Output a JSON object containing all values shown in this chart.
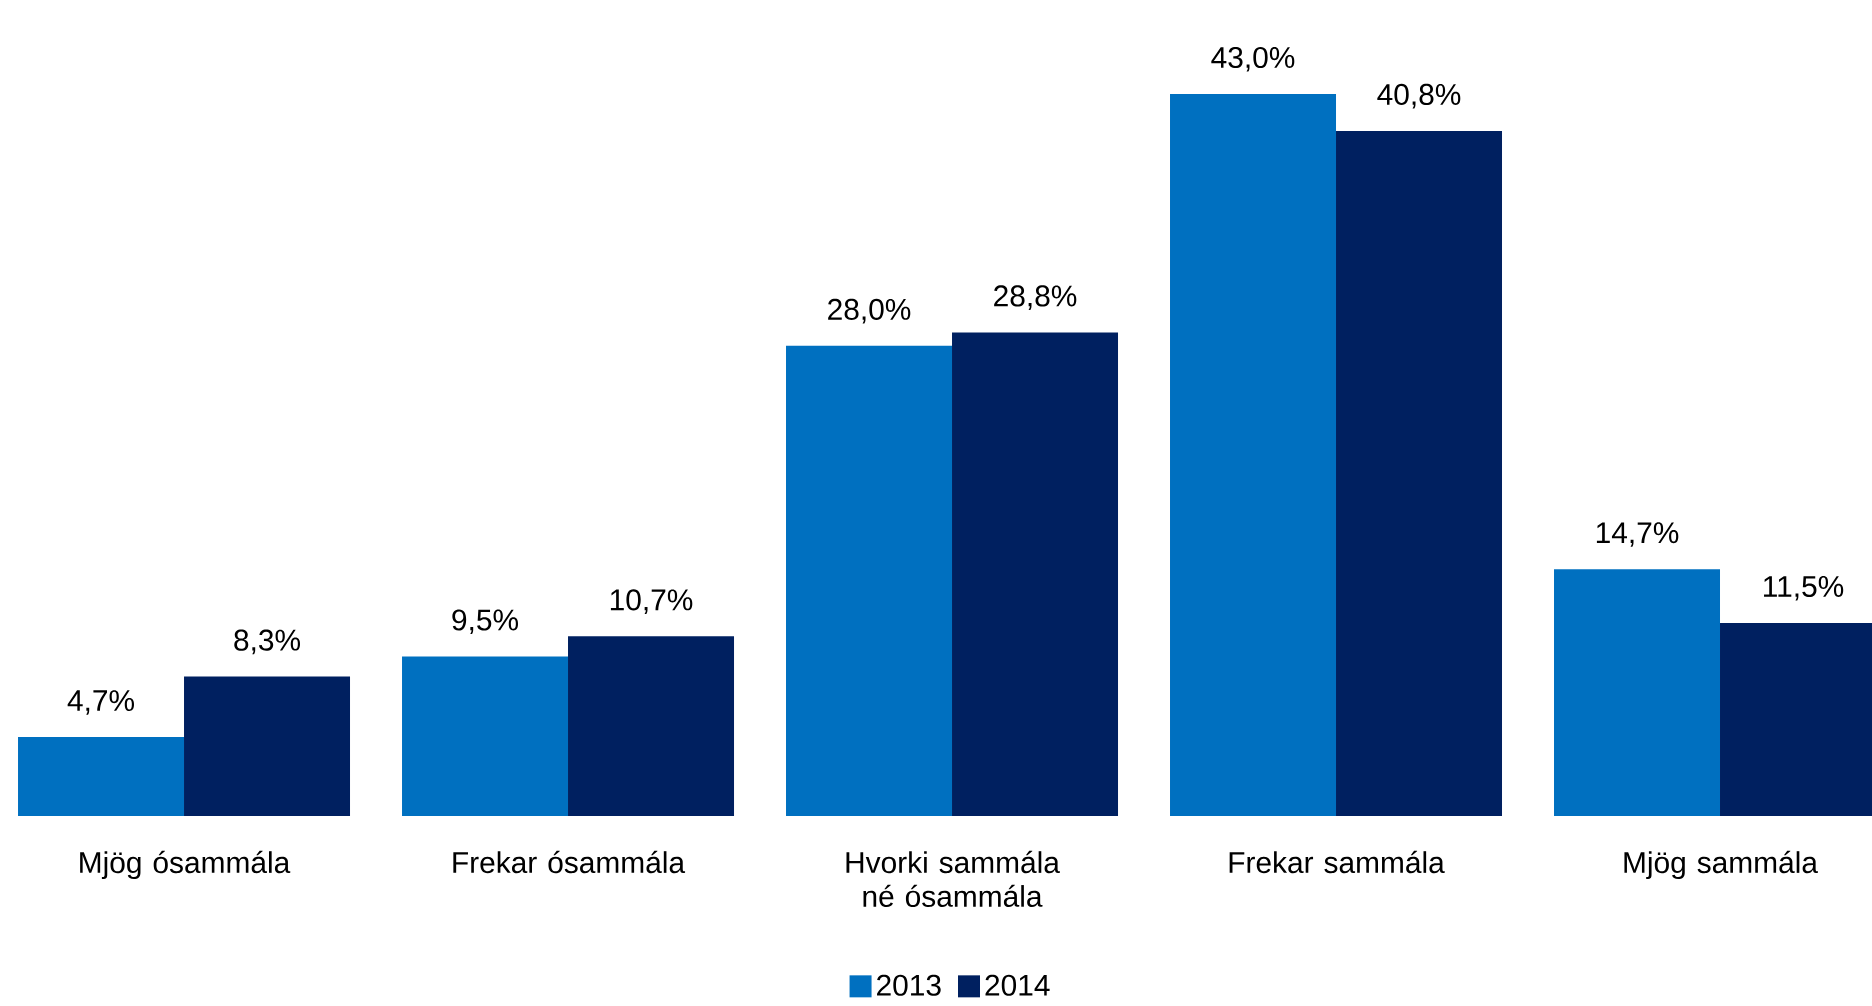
{
  "chart_data": {
    "type": "bar",
    "categories": [
      "Mjög ósammála",
      "Frekar ósammála",
      "Hvorki sammála né ósammála",
      "Frekar sammála",
      "Mjög sammála"
    ],
    "series": [
      {
        "name": "2013",
        "color": "#0070c0",
        "values": [
          4.7,
          9.5,
          28.0,
          43.0,
          14.7
        ],
        "value_labels": [
          "4,7%",
          "9,5%",
          "28,0%",
          "43,0%",
          "14,7%"
        ]
      },
      {
        "name": "2014",
        "color": "#002060",
        "values": [
          8.3,
          10.7,
          28.8,
          40.8,
          11.5
        ],
        "value_labels": [
          "8,3%",
          "10,7%",
          "28,8%",
          "40,8%",
          "11,5%"
        ]
      }
    ],
    "legend": "bottom"
  }
}
